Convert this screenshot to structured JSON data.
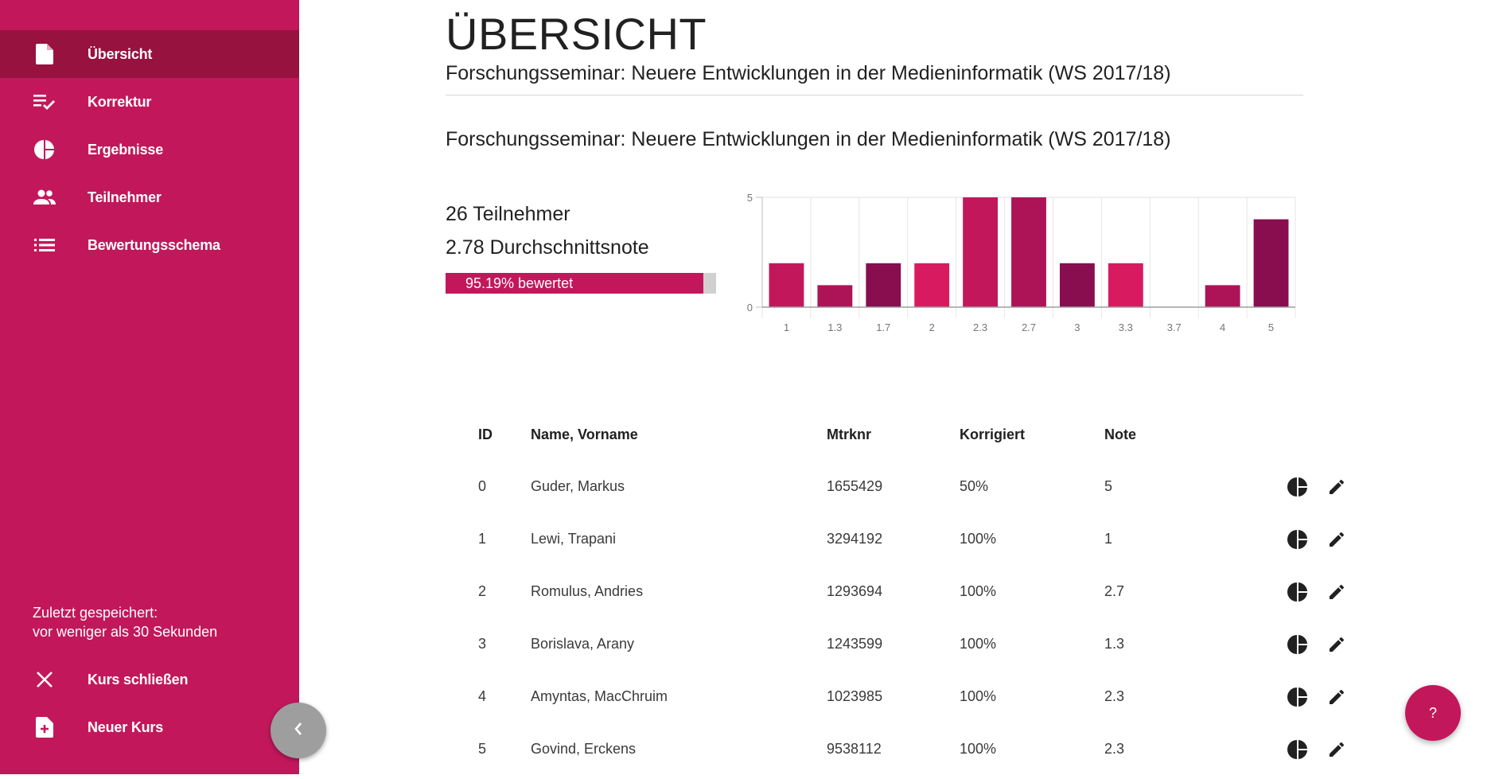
{
  "sidebar": {
    "items": [
      {
        "label": "Übersicht",
        "icon": "document-icon",
        "active": true
      },
      {
        "label": "Korrektur",
        "icon": "checklist-icon",
        "active": false
      },
      {
        "label": "Ergebnisse",
        "icon": "pie-chart-icon",
        "active": false
      },
      {
        "label": "Teilnehmer",
        "icon": "people-icon",
        "active": false
      },
      {
        "label": "Bewertungsschema",
        "icon": "list-icon",
        "active": false
      }
    ],
    "saved_line1": "Zuletzt gespeichert:",
    "saved_line2": "vor weniger als 30 Sekunden",
    "bottom_items": [
      {
        "label": "Kurs schließen",
        "icon": "close-icon"
      },
      {
        "label": "Neuer Kurs",
        "icon": "new-document-icon"
      }
    ],
    "collapse_icon": "chevron-left-icon",
    "background": "#c2185b",
    "active_background": "#97123f"
  },
  "header": {
    "title": "ÜBERSICHT",
    "subtitle": "Forschungsseminar: Neuere Entwicklungen in der Medieninformatik (WS 2017/18)"
  },
  "summary": {
    "section_title": "Forschungsseminar: Neuere Entwicklungen in der Medieninformatik (WS 2017/18)",
    "participants": "26 Teilnehmer",
    "average": "2.78 Durchschnittsnote",
    "progress_label": "95.19% bewertet",
    "progress_value": 0.9519
  },
  "chart_data": {
    "type": "bar",
    "categories": [
      "1",
      "1.3",
      "1.7",
      "2",
      "2.3",
      "2.7",
      "3",
      "3.3",
      "3.7",
      "4",
      "5"
    ],
    "values": [
      2,
      1,
      2,
      2,
      5,
      5,
      2,
      2,
      0,
      1,
      4
    ],
    "colors": [
      "#c2185b",
      "#ad1457",
      "#880e4f",
      "#d81b60",
      "#c2185b",
      "#ad1457",
      "#880e4f",
      "#d81b60",
      "#c2185b",
      "#ad1457",
      "#880e4f"
    ],
    "ylim": [
      0,
      5
    ],
    "yticks": [
      "0",
      "5"
    ],
    "grid": true
  },
  "table": {
    "headers": {
      "id": "ID",
      "name": "Name, Vorname",
      "mtrknr": "Mtrknr",
      "korrigiert": "Korrigiert",
      "note": "Note"
    },
    "rows": [
      {
        "id": "0",
        "name": "Guder, Markus",
        "mtrknr": "1655429",
        "korrigiert": "50%",
        "note": "5"
      },
      {
        "id": "1",
        "name": "Lewi, Trapani",
        "mtrknr": "3294192",
        "korrigiert": "100%",
        "note": "1"
      },
      {
        "id": "2",
        "name": "Romulus, Andries",
        "mtrknr": "1293694",
        "korrigiert": "100%",
        "note": "2.7"
      },
      {
        "id": "3",
        "name": "Borislava, Arany",
        "mtrknr": "1243599",
        "korrigiert": "100%",
        "note": "1.3"
      },
      {
        "id": "4",
        "name": "Amyntas, MacChruim",
        "mtrknr": "1023985",
        "korrigiert": "100%",
        "note": "2.3"
      },
      {
        "id": "5",
        "name": "Govind, Erckens",
        "mtrknr": "9538112",
        "korrigiert": "100%",
        "note": "2.3"
      }
    ],
    "row_actions": [
      "pie-chart-icon",
      "edit-icon"
    ]
  },
  "help": {
    "label": "?"
  }
}
